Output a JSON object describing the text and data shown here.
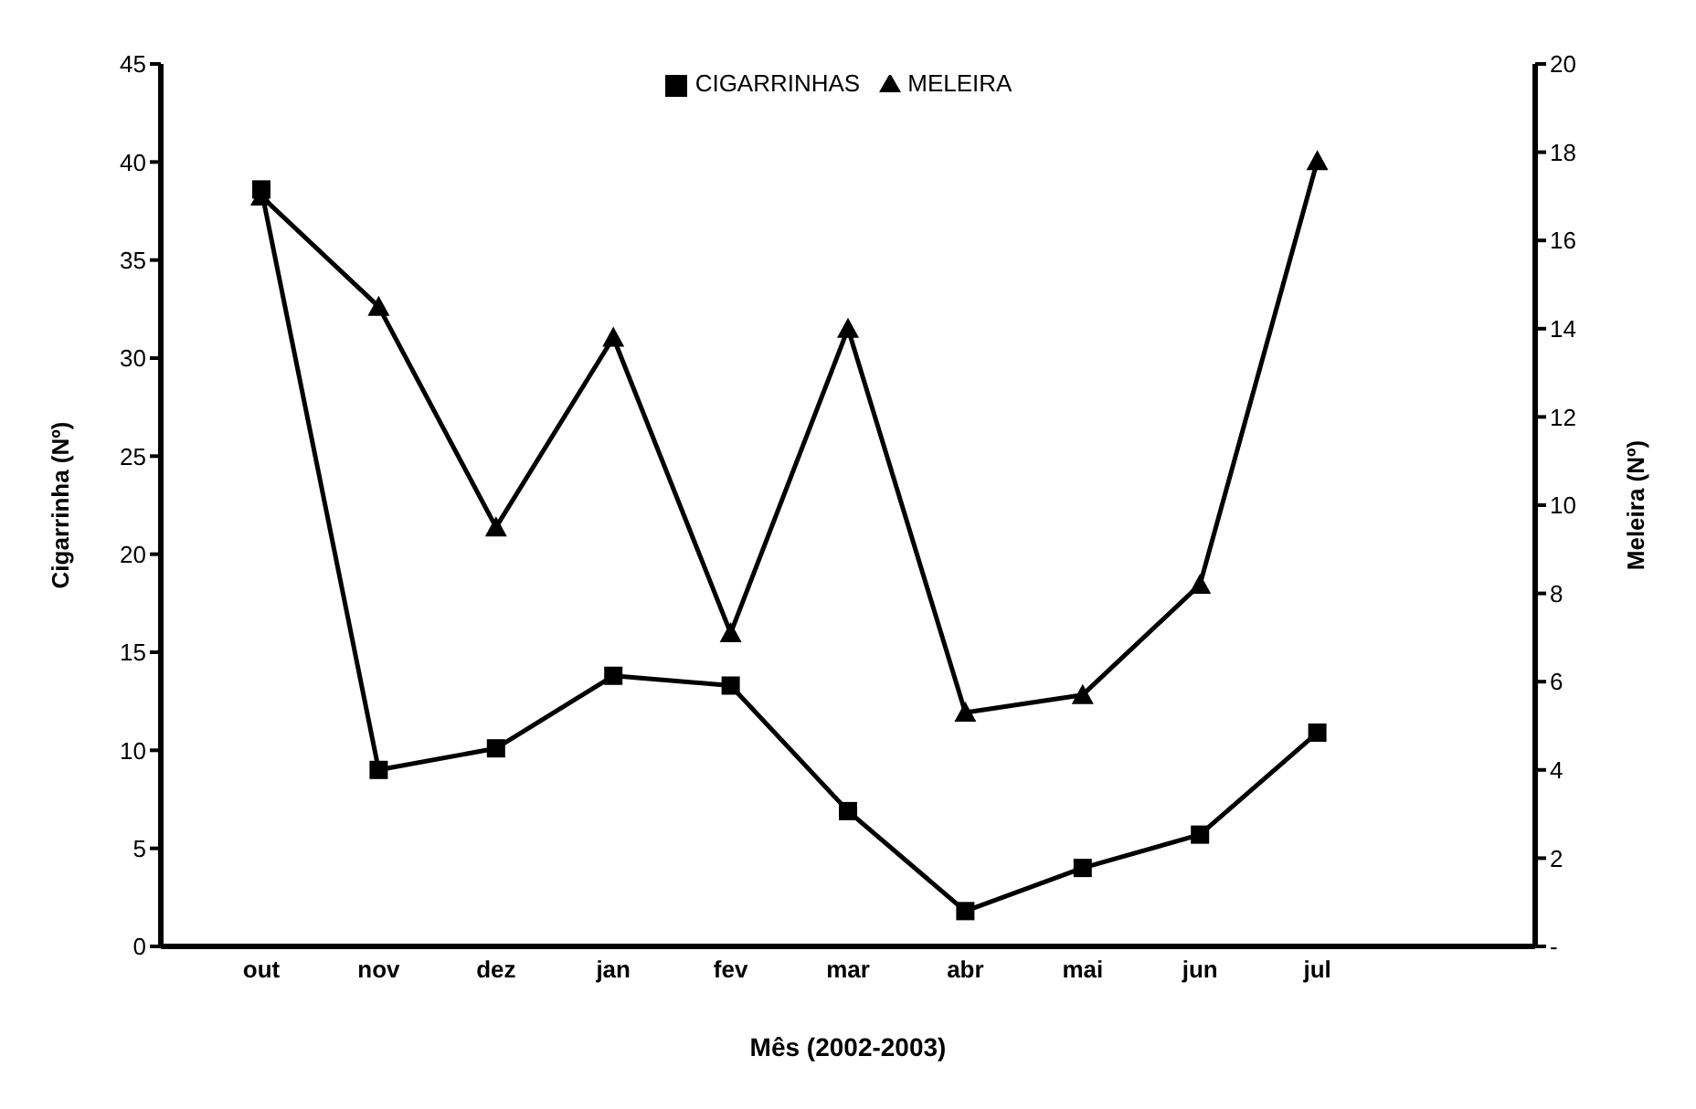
{
  "chart_data": {
    "type": "line",
    "xlabel": "Mês (2002-2003)",
    "ylabel": "Cigarrinha (Nº)",
    "y2label": "Meleira (Nº)",
    "categories": [
      "out",
      "nov",
      "dez",
      "jan",
      "fev",
      "mar",
      "abr",
      "mai",
      "jun",
      "jul",
      null
    ],
    "series": [
      {
        "name": "CIGARRINHAS",
        "color": "#000000",
        "marker": "square",
        "values": [
          38.6,
          9.0,
          10.1,
          13.8,
          13.3,
          6.9,
          1.8,
          4.0,
          5.7,
          10.9,
          null
        ]
      },
      {
        "name": "MELEIRA",
        "color": "#000000",
        "marker": "triangle",
        "axis": "y2",
        "values": [
          17.0,
          14.5,
          9.5,
          13.8,
          7.1,
          14.0,
          5.3,
          5.7,
          8.2,
          17.8,
          null
        ]
      }
    ],
    "ylim": [
      0,
      45
    ],
    "yticks": [
      0,
      5,
      10,
      15,
      20,
      25,
      30,
      35,
      40,
      45
    ],
    "y2lim": [
      0,
      20
    ],
    "y2ticks": [
      {
        "value": 0,
        "label": "-"
      },
      2,
      4,
      6,
      8,
      10,
      12,
      14,
      16,
      18,
      20
    ],
    "grid": false,
    "legend": "top",
    "line_style": "solid"
  }
}
